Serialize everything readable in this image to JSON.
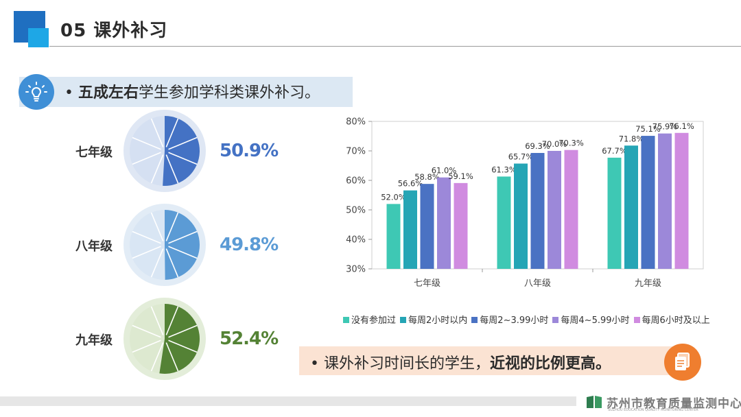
{
  "header": {
    "title": "05  课外补习"
  },
  "callout1": {
    "bullet": "•",
    "bold": "五成左右",
    "rest": "学生参加学科类课外补习。"
  },
  "grades": [
    {
      "label": "七年级",
      "value": 50.9,
      "display": "50.9%",
      "color": "#4472c4",
      "light": "#d5e0f2",
      "ring": "#dfe7f4"
    },
    {
      "label": "八年级",
      "value": 49.8,
      "display": "49.8%",
      "color": "#5b9bd5",
      "light": "#d9e6f4",
      "ring": "#e2ecf6"
    },
    {
      "label": "九年级",
      "value": 52.4,
      "display": "52.4%",
      "color": "#548235",
      "light": "#dde9d0",
      "ring": "#e3edd9"
    }
  ],
  "chart_data": {
    "type": "bar",
    "categories": [
      "七年级",
      "八年级",
      "九年级"
    ],
    "series": [
      {
        "name": "没有参加过",
        "color": "#3ec8b4",
        "values": [
          52.0,
          61.3,
          67.7
        ],
        "labels": [
          "52.0%",
          "61.3%",
          "67.7%"
        ]
      },
      {
        "name": "每周2小时以内",
        "color": "#25a5b5",
        "values": [
          56.6,
          65.7,
          71.8
        ],
        "labels": [
          "56.6%",
          "65.7%",
          "71.8%"
        ]
      },
      {
        "name": "每周2~3.99小时",
        "color": "#4a72c3",
        "values": [
          58.8,
          69.3,
          75.1
        ],
        "labels": [
          "58.8%",
          "69.3%",
          "75.1%"
        ]
      },
      {
        "name": "每周4~5.99小时",
        "color": "#9c88d9",
        "values": [
          61.0,
          70.0,
          75.9
        ],
        "labels": [
          "61.0%",
          "70.0%",
          "75.9%"
        ]
      },
      {
        "name": "每周6小时及以上",
        "color": "#d08be0",
        "values": [
          59.1,
          70.3,
          76.1
        ],
        "labels": [
          "59.1%",
          "70.3%",
          "76.1%"
        ]
      }
    ],
    "ylim": [
      30,
      80
    ],
    "yticks": [
      30,
      40,
      50,
      60,
      70,
      80
    ],
    "ytick_labels": [
      "30%",
      "40%",
      "50%",
      "60%",
      "70%",
      "80%"
    ],
    "grid": false,
    "legend_position": "bottom"
  },
  "callout2": {
    "bullet": "•",
    "text": "课外补习时间长的学生，",
    "bold": "近视的比例更高。"
  },
  "footer": {
    "org_cn": "苏州市教育质量监测中心",
    "org_en": "SUZHOU EDUCATION QUALITY MONITORING CENTER"
  }
}
